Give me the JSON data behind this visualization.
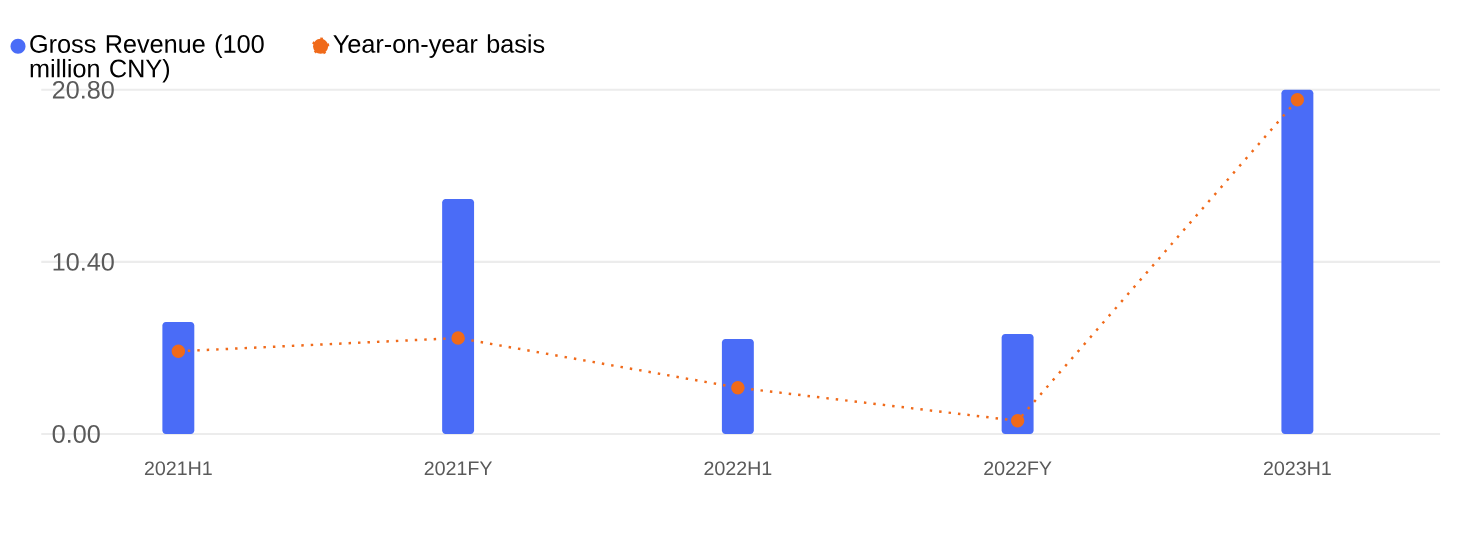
{
  "chart_data": {
    "type": "bar",
    "categories": [
      "2021H1",
      "2021FY",
      "2022H1",
      "2022FY",
      "2023H1"
    ],
    "series": [
      {
        "name": "Gross Revenue (100 million CNY)",
        "color": "#4a6cf7",
        "values": [
          6.77,
          14.2,
          5.74,
          6.05,
          20.8
        ]
      },
      {
        "name": "Year-on-year basis",
        "type": "line",
        "color": "#f06a1a",
        "marker": "circle",
        "line_style": "dotted",
        "values": [
          5.0,
          5.8,
          2.8,
          0.8,
          20.2
        ]
      }
    ],
    "ylim": [
      0,
      20.8
    ],
    "yticks": [
      {
        "value": 0,
        "label": "0.00"
      },
      {
        "value": 10.4,
        "label": "10.40"
      },
      {
        "value": 20.8,
        "label": "20.80"
      }
    ],
    "grid": "y",
    "legend": "top left"
  }
}
